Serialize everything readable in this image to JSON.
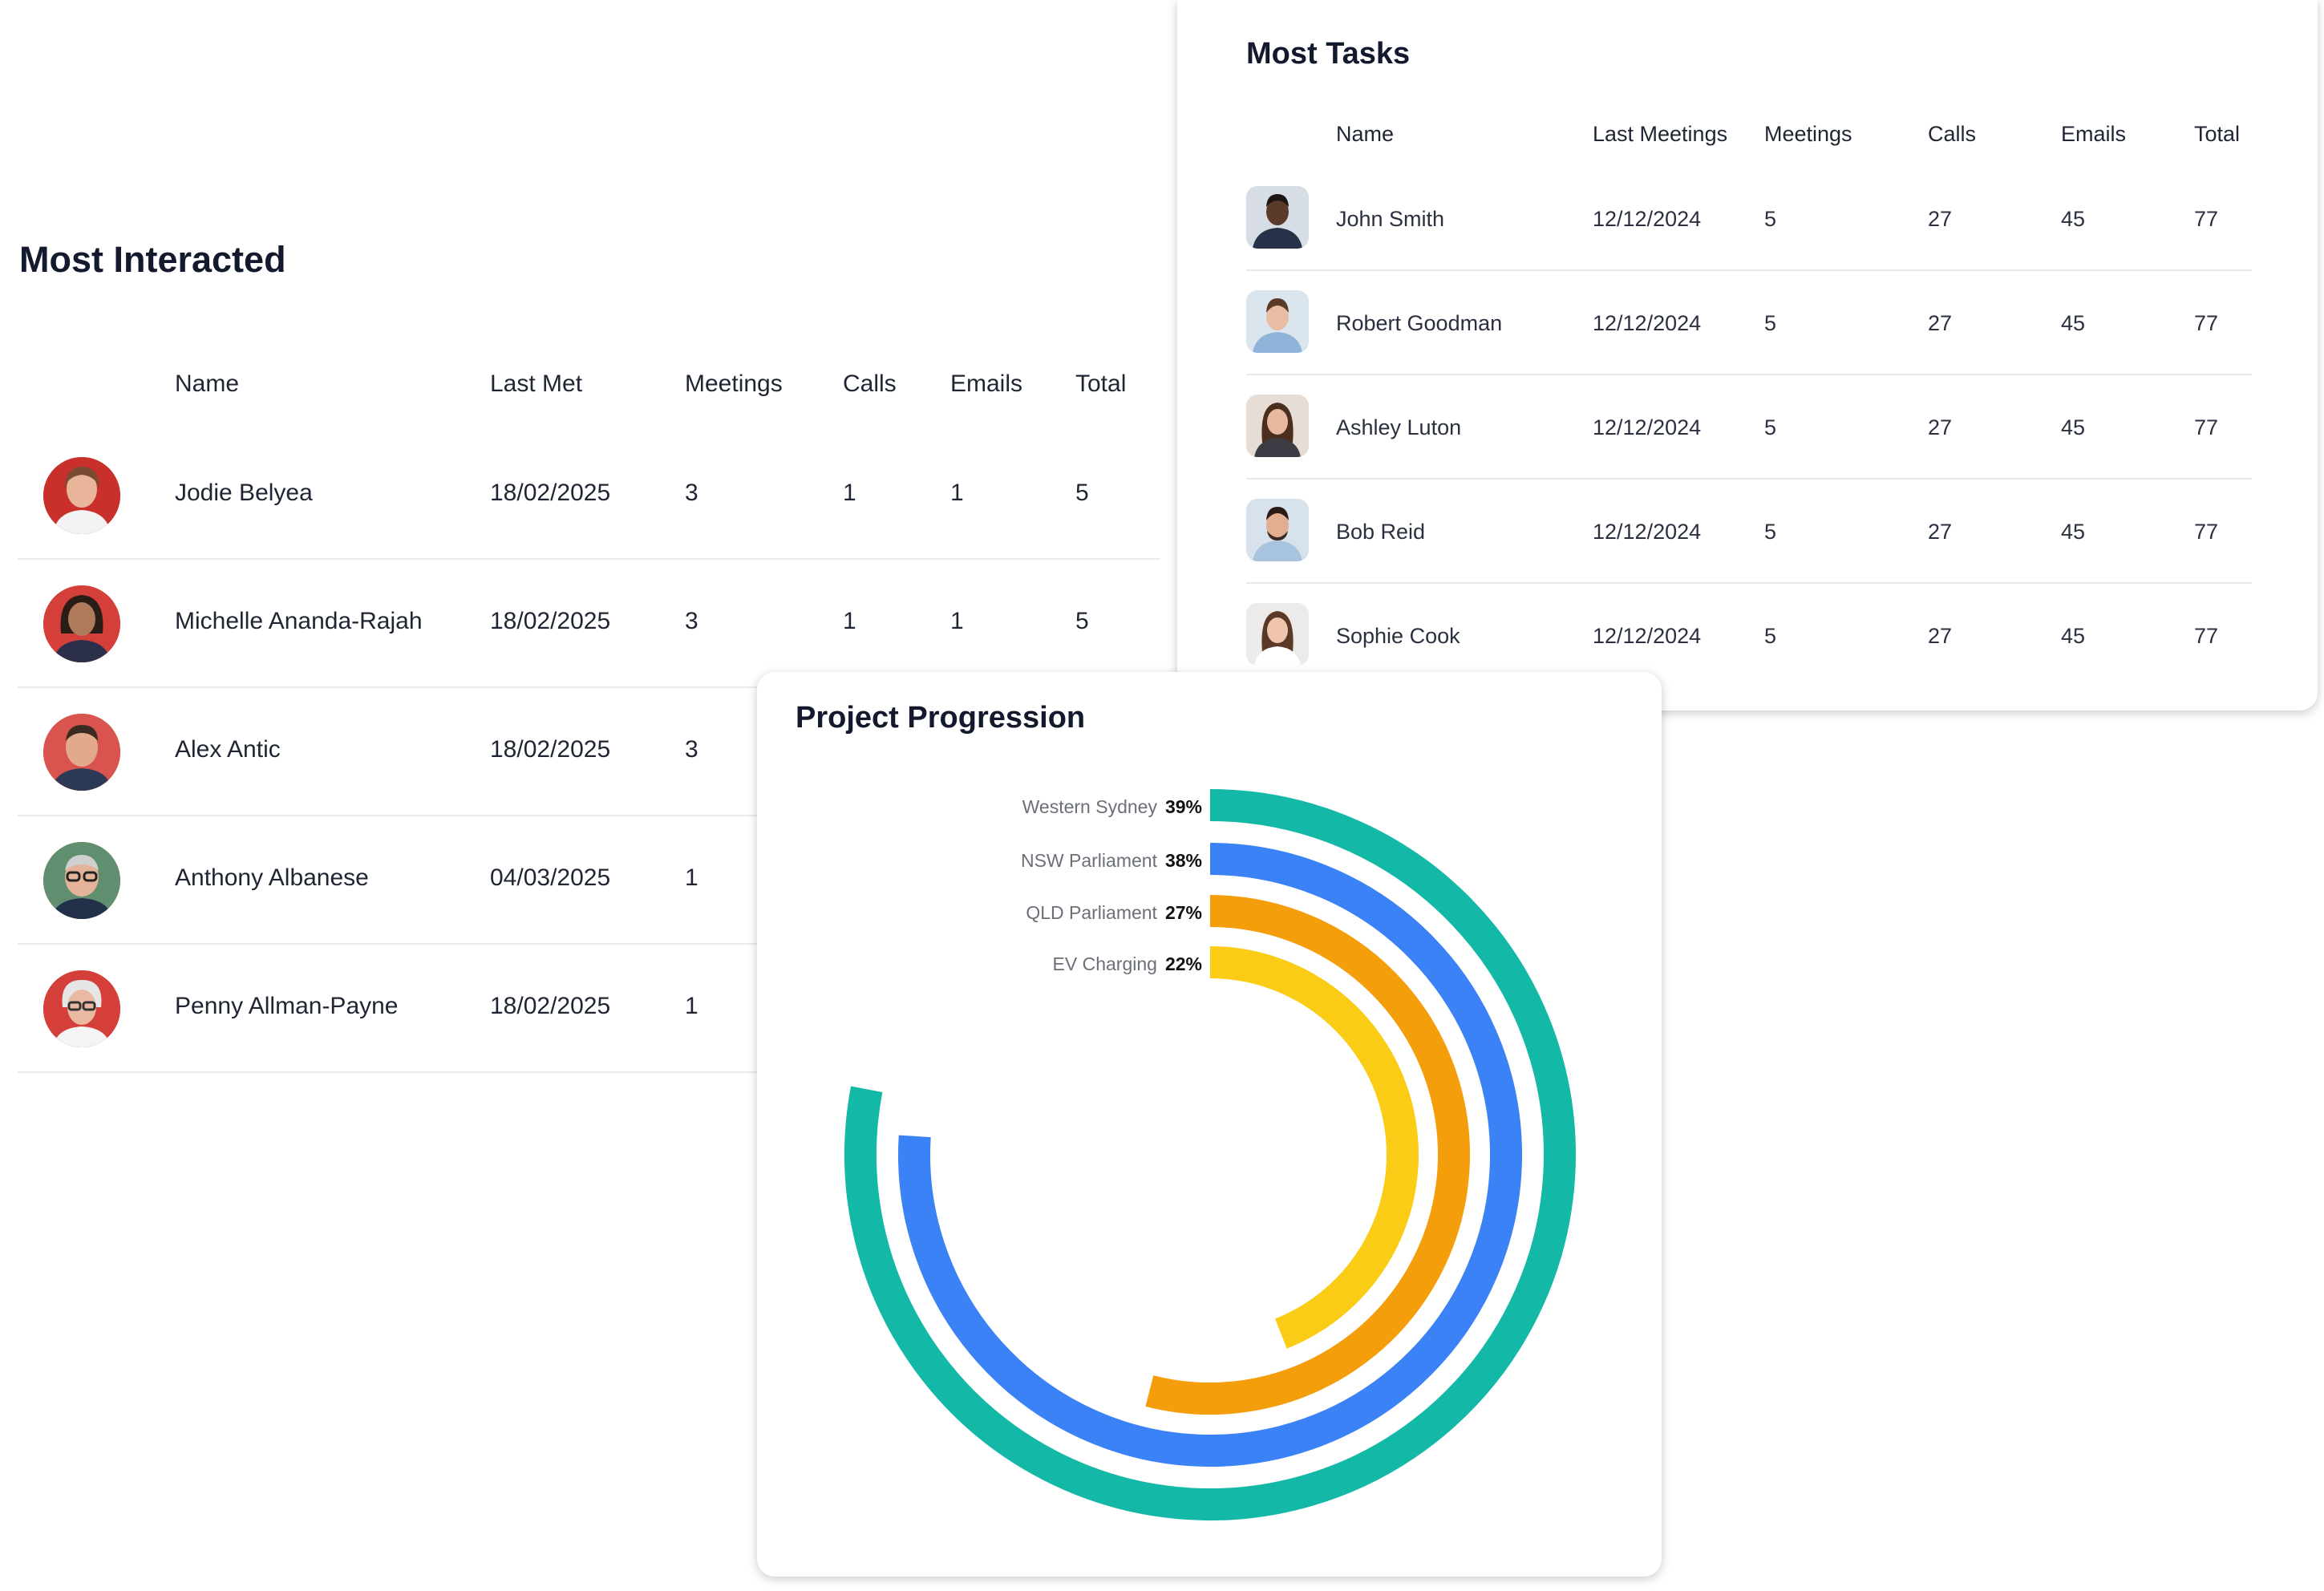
{
  "most_interacted": {
    "title": "Most Interacted",
    "headers": {
      "name": "Name",
      "last_met": "Last Met",
      "meetings": "Meetings",
      "calls": "Calls",
      "emails": "Emails",
      "total": "Total"
    },
    "rows": [
      {
        "name": "Jodie Belyea",
        "last_met": "18/02/2025",
        "meetings": "3",
        "calls": "1",
        "emails": "1",
        "total": "5",
        "avatar_bg": "#c9302c"
      },
      {
        "name": "Michelle Ananda-Rajah",
        "last_met": "18/02/2025",
        "meetings": "3",
        "calls": "1",
        "emails": "1",
        "total": "5",
        "avatar_bg": "#d43f3a"
      },
      {
        "name": "Alex Antic",
        "last_met": "18/02/2025",
        "meetings": "3",
        "calls": "",
        "emails": "",
        "total": "",
        "avatar_bg": "#d9534f"
      },
      {
        "name": "Anthony Albanese",
        "last_met": "04/03/2025",
        "meetings": "1",
        "calls": "",
        "emails": "",
        "total": "",
        "avatar_bg": "#5f8f6e"
      },
      {
        "name": "Penny Allman-Payne",
        "last_met": "18/02/2025",
        "meetings": "1",
        "calls": "",
        "emails": "",
        "total": "",
        "avatar_bg": "#d43f3a"
      }
    ]
  },
  "most_tasks": {
    "title": "Most Tasks",
    "headers": {
      "name": "Name",
      "last_meetings": "Last Meetings",
      "meetings": "Meetings",
      "calls": "Calls",
      "emails": "Emails",
      "total": "Total"
    },
    "rows": [
      {
        "name": "John Smith",
        "last_meetings": "12/12/2024",
        "meetings": "5",
        "calls": "27",
        "emails": "45",
        "total": "77"
      },
      {
        "name": "Robert Goodman",
        "last_meetings": "12/12/2024",
        "meetings": "5",
        "calls": "27",
        "emails": "45",
        "total": "77"
      },
      {
        "name": "Ashley Luton",
        "last_meetings": "12/12/2024",
        "meetings": "5",
        "calls": "27",
        "emails": "45",
        "total": "77"
      },
      {
        "name": "Bob Reid",
        "last_meetings": "12/12/2024",
        "meetings": "5",
        "calls": "27",
        "emails": "45",
        "total": "77"
      },
      {
        "name": "Sophie Cook",
        "last_meetings": "12/12/2024",
        "meetings": "5",
        "calls": "27",
        "emails": "45",
        "total": "77"
      }
    ]
  },
  "project_progression": {
    "title": "Project Progression"
  },
  "chart_data": {
    "type": "radial-bar",
    "title": "Project Progression",
    "series": [
      {
        "name": "Western Sydney",
        "value": 39,
        "label": "39%",
        "color": "#14b8a6"
      },
      {
        "name": "NSW Parliament",
        "value": 38,
        "label": "38%",
        "color": "#3b82f6"
      },
      {
        "name": "QLD Parliament",
        "value": 27,
        "label": "27%",
        "color": "#f59e0b"
      },
      {
        "name": "EV Charging",
        "value": 22,
        "label": "22%",
        "color": "#facc15"
      }
    ],
    "legend": "left-of-arcs"
  }
}
